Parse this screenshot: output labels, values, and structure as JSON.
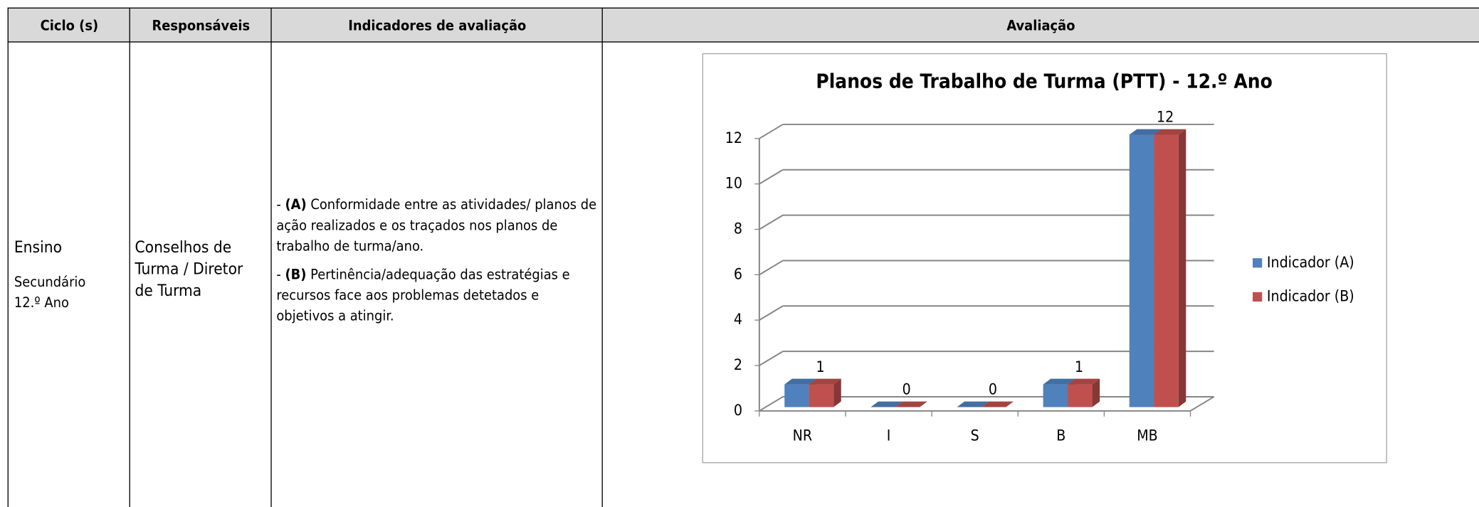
{
  "table": {
    "headers": [
      "Ciclo (s)",
      "Responsáveis",
      "Indicadores de avaliação",
      "Avaliação"
    ],
    "cycle": [
      "Ensino",
      "Secundário",
      "12.º Ano"
    ],
    "responsible": "Conselhos de Turma / Diretor de Turma",
    "indicators": [
      {
        "bullet": "-",
        "marker": "(A)",
        "text": "Conformidade entre as atividades/ planos de ação realizados e os traçados nos planos de trabalho de turma/ano."
      },
      {
        "bullet": "-",
        "marker": "(B)",
        "text": "Pertinência/adequação das estratégias e recursos face aos problemas detetados e objetivos a atingir."
      }
    ]
  },
  "chart_data": {
    "type": "bar3d",
    "title": "Planos de Trabalho de Turma (PTT) - 12.º Ano",
    "categories": [
      "NR",
      "I",
      "S",
      "B",
      "MB"
    ],
    "series": [
      {
        "name": "Indicador (A)",
        "color": "#4f81bd",
        "values": [
          1,
          0,
          0,
          1,
          12
        ]
      },
      {
        "name": "Indicador (B)",
        "color": "#c0504d",
        "values": [
          1,
          0,
          0,
          1,
          12
        ]
      }
    ],
    "ylim": [
      0,
      12
    ],
    "yticks": [
      0,
      2,
      4,
      6,
      8,
      10,
      12
    ],
    "grid": true,
    "legend": "right"
  }
}
